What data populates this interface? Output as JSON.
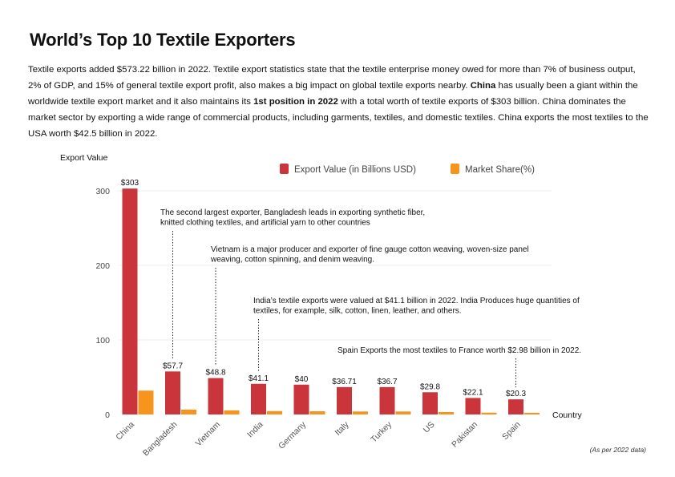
{
  "title": "World’s Top 10 Textile Exporters",
  "description": {
    "p1": "Textile exports added $573.22 billion in 2022. Textile export statistics state that the textile enterprise money owed for more than 7% of business output, 2% of GDP, and 15% of general textile export profit, also makes a big impact on global textile exports nearby. ",
    "b1": "China",
    "p2": " has usually been a giant within the worldwide textile export market and it also maintains its ",
    "b2": "1st position in 2022",
    "p3": " with a total worth of textile exports of $303 billion. China dominates the market sector by exporting a wide range of commercial products, including garments, textiles, and domestic textiles. China exports the most textiles to the USA worth $42.5 billion in 2022."
  },
  "footnote": "(As per 2022  data)",
  "colors": {
    "export": "#c9353a",
    "share": "#f7941d",
    "grid": "#eeeeee"
  },
  "chart_data": {
    "type": "bar",
    "ylabel": "Export Value",
    "xlabel": "Country",
    "ylim": [
      0,
      300
    ],
    "yticks": [
      0,
      100,
      200,
      300
    ],
    "grid": true,
    "legend_position": "top-right",
    "categories": [
      "China",
      "Bangladesh",
      "Vietnam",
      "India",
      "Germany",
      "Italy",
      "Turkey",
      "US",
      "Pakistan",
      "Spain"
    ],
    "series": [
      {
        "name": "Export Value (in Billions USD)",
        "values": [
          303,
          57.7,
          48.8,
          41.1,
          40,
          36.71,
          36.7,
          29.8,
          22.1,
          20.3
        ],
        "labels": [
          "$303",
          "$57.7",
          "$48.8",
          "$41.1",
          "$40",
          "$36.71",
          "$36.7",
          "$29.8",
          "$22.1",
          "$20.3"
        ]
      },
      {
        "name": "Market Share(%)",
        "values": [
          32,
          6.5,
          5.5,
          4.5,
          4.3,
          4,
          4,
          3.3,
          2.4,
          2.2
        ]
      }
    ],
    "annotations": [
      {
        "category": "Bangladesh",
        "lines": [
          "The second largest exporter, Bangladesh leads in exporting synthetic fiber,",
          "knitted clothing textiles, and artificial yarn to other countries"
        ]
      },
      {
        "category": "Vietnam",
        "lines": [
          "Vietnam is a major producer and exporter of fine gauge cotton weaving, woven-size panel",
          "weaving, cotton spinning, and denim weaving."
        ]
      },
      {
        "category": "India",
        "lines": [
          "India’s textile exports were valued at $41.1 billion in 2022. India Produces huge quantities of",
          "textiles, for example, silk, cotton, linen, leather, and others."
        ]
      },
      {
        "category": "Spain",
        "lines": [
          "Spain Exports the most textiles to France worth $2.98 billion in 2022."
        ]
      }
    ]
  }
}
